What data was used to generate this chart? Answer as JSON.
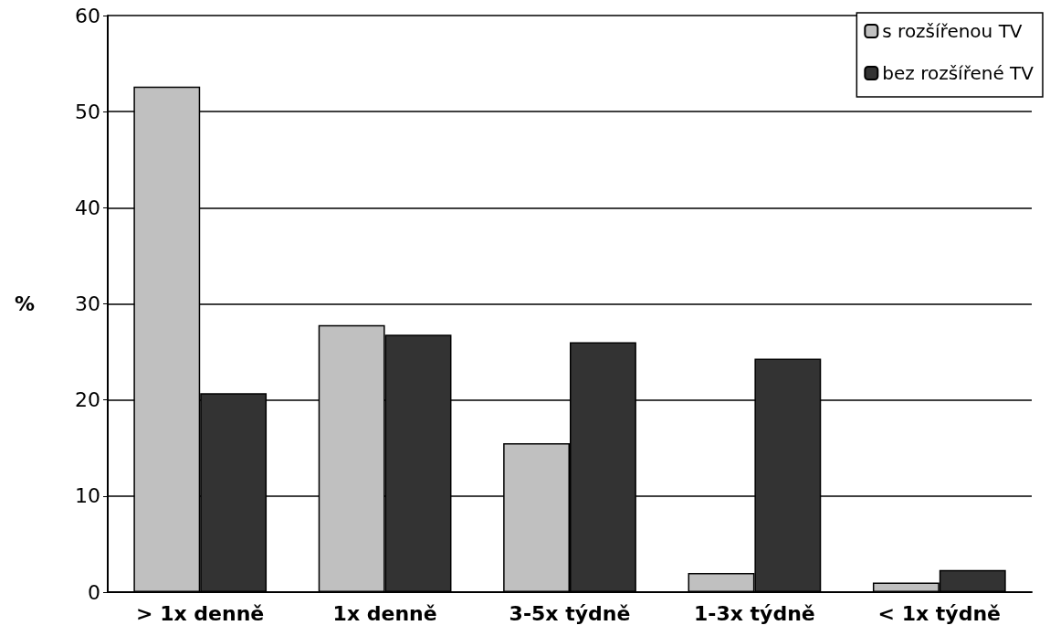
{
  "chart_data": {
    "type": "bar",
    "ylabel": "%",
    "categories": [
      "> 1x denně",
      "1x denně",
      "3-5x týdně",
      "1-3x týdně",
      "< 1x týdně"
    ],
    "series": [
      {
        "name": "s rozšířenou TV",
        "color": "#c0c0c0",
        "values": [
          52.6,
          27.8,
          15.5,
          2,
          1
        ]
      },
      {
        "name": "bez rozšířené TV",
        "color": "#333333",
        "values": [
          20.7,
          26.8,
          26,
          24.3,
          2.3
        ]
      }
    ],
    "ylim": [
      0,
      60
    ],
    "yticks": [
      0,
      10,
      20,
      30,
      40,
      50,
      60
    ],
    "grid": "y",
    "legend": "top right"
  }
}
